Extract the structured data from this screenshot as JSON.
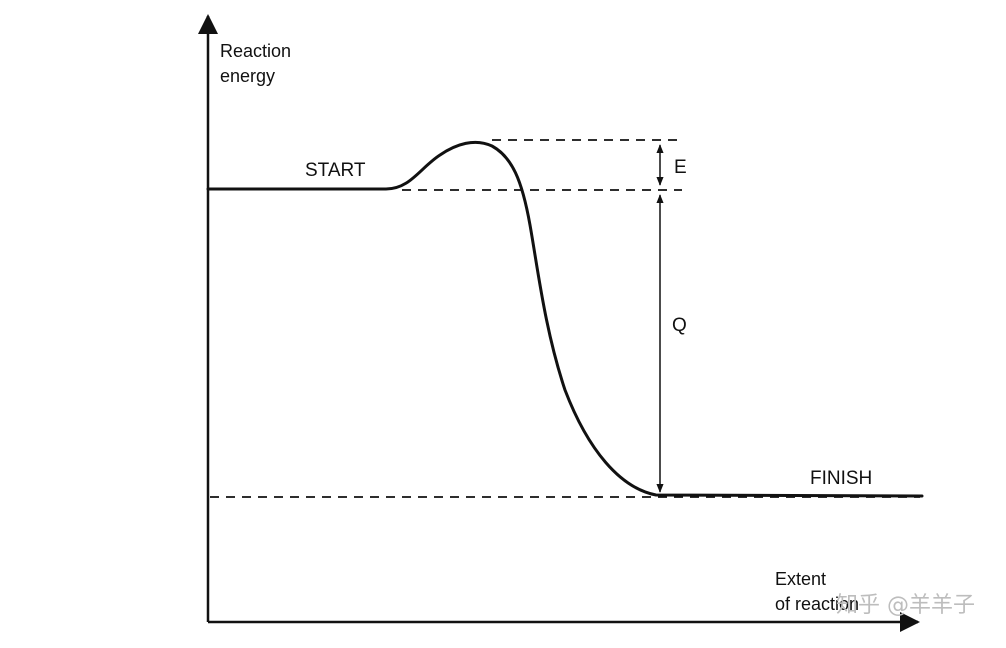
{
  "y_axis_label": [
    "Reaction",
    "energy"
  ],
  "x_axis_label": [
    "Extent",
    "of reaction"
  ],
  "labels": {
    "start": "START",
    "finish": "FINISH",
    "activation_energy": "E",
    "heat_of_reaction": "Q"
  },
  "watermark": "知乎 @羊羊子",
  "colors": {
    "ink": "#111111",
    "background": "#ffffff",
    "watermark": "#bdbdbd"
  }
}
